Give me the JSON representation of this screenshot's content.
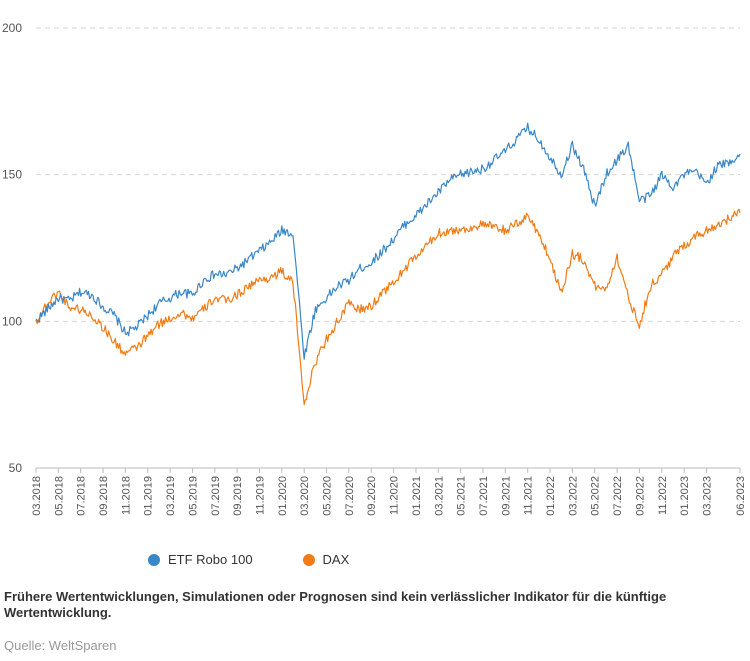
{
  "chart_data": {
    "type": "line",
    "title": "",
    "xlabel": "",
    "ylabel": "",
    "ylim": [
      50,
      200
    ],
    "yticks": [
      50,
      100,
      150,
      200
    ],
    "grid": true,
    "legend_position": "bottom-left",
    "x_tick_labels": [
      "03.2018",
      "05.2018",
      "07.2018",
      "09.2018",
      "11.2018",
      "01.2019",
      "03.2019",
      "05.2019",
      "07.2019",
      "09.2019",
      "11.2019",
      "01.2020",
      "03.2020",
      "05.2020",
      "07.2020",
      "09.2020",
      "11.2020",
      "01.2021",
      "03.2021",
      "05.2021",
      "07.2021",
      "09.2021",
      "11.2021",
      "01.2022",
      "03.2022",
      "05.2022",
      "07.2022",
      "09.2022",
      "11.2022",
      "01.2023",
      "03.2023",
      "06.2023"
    ],
    "x": [
      "2018-03",
      "2018-04",
      "2018-05",
      "2018-06",
      "2018-07",
      "2018-08",
      "2018-09",
      "2018-10",
      "2018-11",
      "2018-12",
      "2019-01",
      "2019-02",
      "2019-03",
      "2019-04",
      "2019-05",
      "2019-06",
      "2019-07",
      "2019-08",
      "2019-09",
      "2019-10",
      "2019-11",
      "2019-12",
      "2020-01",
      "2020-02",
      "2020-03",
      "2020-04",
      "2020-05",
      "2020-06",
      "2020-07",
      "2020-08",
      "2020-09",
      "2020-10",
      "2020-11",
      "2020-12",
      "2021-01",
      "2021-02",
      "2021-03",
      "2021-04",
      "2021-05",
      "2021-06",
      "2021-07",
      "2021-08",
      "2021-09",
      "2021-10",
      "2021-11",
      "2021-12",
      "2022-01",
      "2022-02",
      "2022-03",
      "2022-04",
      "2022-05",
      "2022-06",
      "2022-07",
      "2022-08",
      "2022-09",
      "2022-10",
      "2022-11",
      "2022-12",
      "2023-01",
      "2023-02",
      "2023-03",
      "2023-04",
      "2023-05",
      "2023-06"
    ],
    "series": [
      {
        "name": "ETF Robo 100",
        "color": "#3a87c8",
        "values": [
          100,
          104,
          108,
          107,
          110,
          109,
          105,
          102,
          96,
          98,
          102,
          106,
          108,
          110,
          109,
          114,
          116,
          116,
          118,
          121,
          124,
          127,
          131,
          130,
          88,
          104,
          108,
          112,
          114,
          118,
          120,
          124,
          128,
          133,
          136,
          140,
          144,
          148,
          150,
          151,
          152,
          155,
          158,
          162,
          166,
          162,
          156,
          150,
          160,
          152,
          139,
          150,
          155,
          160,
          141,
          143,
          150,
          146,
          150,
          151,
          147,
          153,
          154,
          157
        ]
      },
      {
        "name": "DAX",
        "color": "#f07c15",
        "values": [
          100,
          106,
          110,
          105,
          104,
          102,
          98,
          93,
          89,
          91,
          95,
          99,
          101,
          103,
          101,
          104,
          108,
          107,
          109,
          112,
          114,
          115,
          117,
          113,
          72,
          86,
          94,
          100,
          106,
          104,
          105,
          110,
          113,
          118,
          122,
          126,
          130,
          131,
          131,
          132,
          133,
          132,
          131,
          133,
          136,
          130,
          121,
          110,
          123,
          121,
          112,
          111,
          122,
          108,
          99,
          112,
          116,
          122,
          126,
          129,
          131,
          133,
          135,
          137
        ]
      }
    ]
  },
  "legend": {
    "items": [
      {
        "label": "ETF Robo 100",
        "color": "#3a87c8"
      },
      {
        "label": "DAX",
        "color": "#f07c15"
      }
    ]
  },
  "footer": {
    "disclaimer": "Frühere Wertentwicklungen, Simulationen oder Prognosen sind kein verlässlicher Indikator für die künftige Wertentwicklung.",
    "source": "Quelle: WeltSparen"
  }
}
